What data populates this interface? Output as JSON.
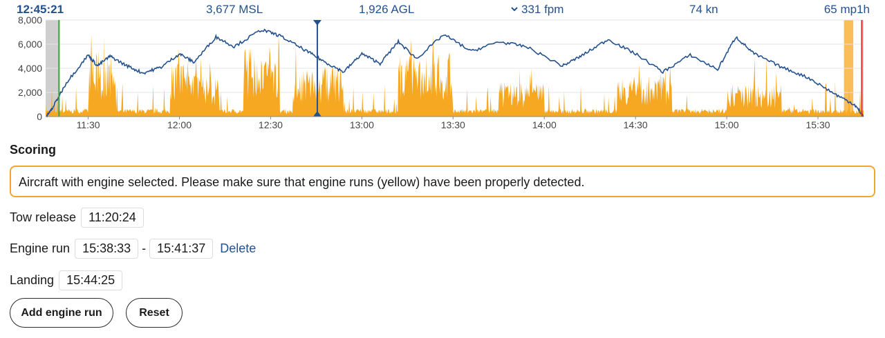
{
  "readout": {
    "time": "12:45:21",
    "msl": "3,677 MSL",
    "agl": "1,926 AGL",
    "vario": "331 fpm",
    "speed": "74 kn",
    "ld": "65 mp1h"
  },
  "chart_data": {
    "type": "area",
    "y_ticks": [
      "0",
      "2,000",
      "4,000",
      "6,000",
      "8,000"
    ],
    "x_ticks": [
      "11:30",
      "12:00",
      "12:30",
      "13:00",
      "13:30",
      "14:00",
      "14:30",
      "15:00",
      "15:30"
    ],
    "ylim": [
      0,
      8000
    ],
    "x_range": [
      "11:16",
      "15:45"
    ],
    "grid": true,
    "series": [
      {
        "type": "line",
        "color": "#23508e"
      },
      {
        "type": "area",
        "color": "#f7a823"
      }
    ],
    "cursor_time": "12:45:21",
    "tow_release": "11:20:24",
    "engine_run": [
      "15:38:33",
      "15:41:37"
    ],
    "landing": "15:44:25"
  },
  "scoring": {
    "title": "Scoring",
    "warning": "Aircraft with engine selected. Please make sure that engine runs (yellow) have been properly detected.",
    "tow_release_label": "Tow release",
    "tow_release_value": "11:20:24",
    "engine_run_label": "Engine run",
    "engine_run_start": "15:38:33",
    "engine_run_separator": "-",
    "engine_run_end": "15:41:37",
    "delete_label": "Delete",
    "landing_label": "Landing",
    "landing_value": "15:44:25",
    "add_engine_run_label": "Add engine run",
    "reset_label": "Reset"
  }
}
